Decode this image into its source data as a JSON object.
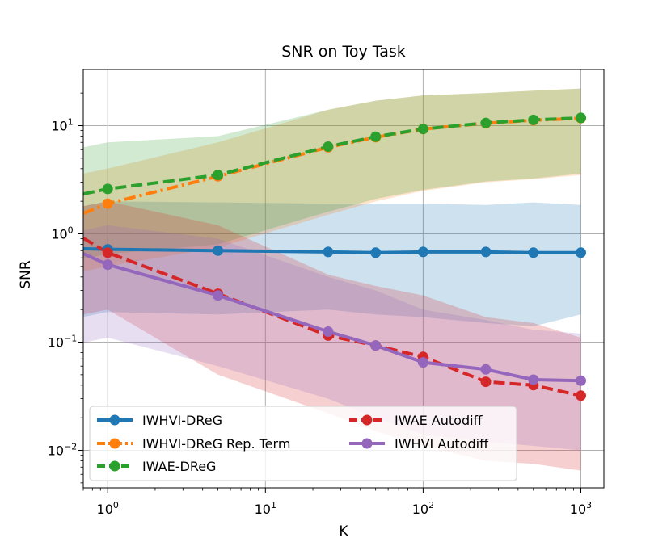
{
  "chart_data": {
    "type": "line",
    "title": "SNR on Toy Task",
    "xlabel": "K",
    "ylabel": "SNR",
    "xscale": "log",
    "yscale": "log",
    "xlim": [
      0.7,
      1400
    ],
    "ylim": [
      0.0045,
      33
    ],
    "x_ticks": [
      {
        "base": "10",
        "exp": "0"
      },
      {
        "base": "10",
        "exp": "1"
      },
      {
        "base": "10",
        "exp": "2"
      },
      {
        "base": "10",
        "exp": "3"
      }
    ],
    "y_ticks": [
      {
        "base": "10",
        "exp": "−2"
      },
      {
        "base": "10",
        "exp": "−1"
      },
      {
        "base": "10",
        "exp": "0"
      },
      {
        "base": "10",
        "exp": "1"
      }
    ],
    "grid": true,
    "legend_position": "bottom",
    "x": [
      1,
      5,
      25,
      50,
      100,
      250,
      500,
      1000
    ],
    "series": [
      {
        "name": "IWHVI-DReG",
        "color": "#1f77b4",
        "linestyle": "solid",
        "values": [
          0.72,
          0.7,
          0.68,
          0.67,
          0.68,
          0.68,
          0.67,
          0.67
        ],
        "band_low": [
          0.19,
          0.18,
          0.2,
          0.18,
          0.17,
          0.15,
          0.14,
          0.18
        ],
        "band_high": [
          2.0,
          1.95,
          1.9,
          1.9,
          1.9,
          1.85,
          1.95,
          1.85
        ]
      },
      {
        "name": "IWHVI-DReG Rep. Term",
        "color": "#ff7f0e",
        "linestyle": "dashdot",
        "values": [
          1.9,
          3.4,
          6.3,
          7.8,
          9.3,
          10.5,
          11.2,
          11.7
        ],
        "band_low": [
          0.5,
          0.75,
          1.5,
          2.0,
          2.5,
          3.0,
          3.2,
          3.5
        ],
        "band_high": [
          4.0,
          7.0,
          14.0,
          17.0,
          19.0,
          20.0,
          21.0,
          22.0
        ]
      },
      {
        "name": "IWAE-DReG",
        "color": "#2ca02c",
        "linestyle": "dashed",
        "values": [
          2.6,
          3.5,
          6.4,
          7.9,
          9.3,
          10.6,
          11.3,
          11.8
        ],
        "band_low": [
          0.65,
          0.8,
          1.6,
          2.1,
          2.55,
          3.05,
          3.25,
          3.6
        ],
        "band_high": [
          7.0,
          8.0,
          14.0,
          17.0,
          19.0,
          20.0,
          21.0,
          22.0
        ]
      },
      {
        "name": "IWAE Autodiff",
        "color": "#d62728",
        "linestyle": "dashed",
        "values": [
          0.67,
          0.28,
          0.115,
          0.093,
          0.073,
          0.043,
          0.04,
          0.032
        ],
        "band_low": [
          0.2,
          0.05,
          0.022,
          0.015,
          0.011,
          0.008,
          0.0075,
          0.0065
        ],
        "band_high": [
          2.0,
          1.2,
          0.42,
          0.33,
          0.27,
          0.17,
          0.15,
          0.11
        ]
      },
      {
        "name": "IWHVI Autodiff",
        "color": "#9467bd",
        "linestyle": "solid",
        "values": [
          0.52,
          0.27,
          0.125,
          0.093,
          0.065,
          0.056,
          0.045,
          0.044
        ],
        "band_low": [
          0.11,
          0.06,
          0.03,
          0.02,
          0.014,
          0.012,
          0.011,
          0.01
        ],
        "band_high": [
          1.2,
          0.9,
          0.4,
          0.3,
          0.2,
          0.16,
          0.13,
          0.12
        ]
      }
    ]
  }
}
